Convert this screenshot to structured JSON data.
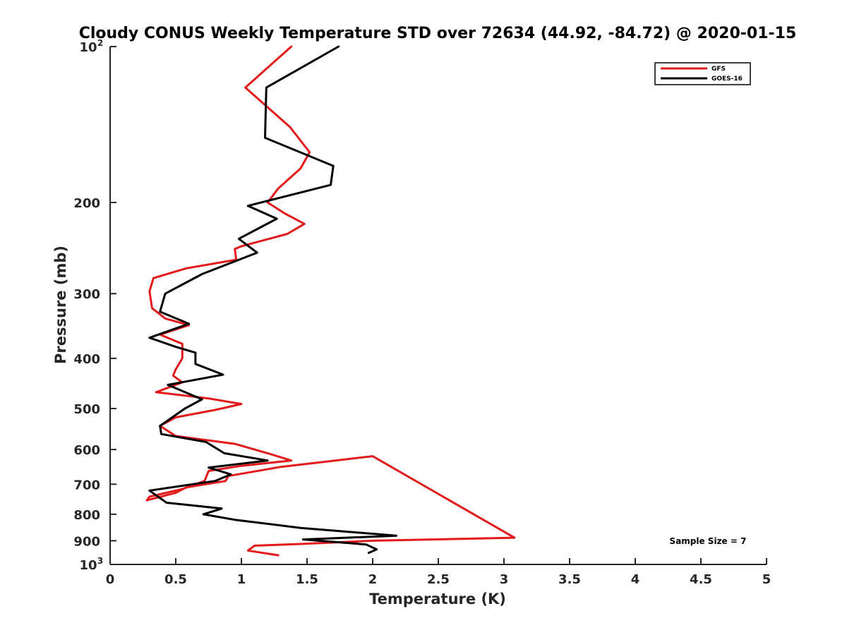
{
  "chart_data": {
    "type": "line",
    "title": "Cloudy CONUS Weekly Temperature STD over 72634 (44.92, -84.72) @ 2020-01-15",
    "xlabel": "Temperature (K)",
    "ylabel": "Pressure (mb)",
    "xlim": [
      0,
      5
    ],
    "ylim": [
      1000,
      100
    ],
    "y_scale": "log",
    "y_reversed": true,
    "grid": false,
    "legend_position": "top-right",
    "x_ticks": [
      "0",
      "0.5",
      "1",
      "1.5",
      "2",
      "2.5",
      "3",
      "3.5",
      "4",
      "4.5",
      "5"
    ],
    "y_ticks": [
      {
        "value": 100,
        "base": "10",
        "exp": "2"
      },
      {
        "value": 200,
        "label": "200"
      },
      {
        "value": 300,
        "label": "300"
      },
      {
        "value": 400,
        "label": "400"
      },
      {
        "value": 500,
        "label": "500"
      },
      {
        "value": 600,
        "label": "600"
      },
      {
        "value": 700,
        "label": "700"
      },
      {
        "value": 800,
        "label": "800"
      },
      {
        "value": 900,
        "label": "900"
      },
      {
        "value": 1000,
        "base": "10",
        "exp": "3"
      }
    ],
    "series": [
      {
        "name": "GFS",
        "color": "#e31a1c",
        "points": [
          [
            1.38,
            100
          ],
          [
            1.03,
            120
          ],
          [
            1.37,
            143
          ],
          [
            1.52,
            160
          ],
          [
            1.45,
            172
          ],
          [
            1.28,
            188
          ],
          [
            1.2,
            200
          ],
          [
            1.33,
            210
          ],
          [
            1.48,
            220
          ],
          [
            1.35,
            230
          ],
          [
            1.0,
            243
          ],
          [
            0.95,
            246
          ],
          [
            0.96,
            258
          ],
          [
            0.58,
            268
          ],
          [
            0.33,
            280
          ],
          [
            0.3,
            297
          ],
          [
            0.32,
            320
          ],
          [
            0.42,
            335
          ],
          [
            0.6,
            345
          ],
          [
            0.38,
            360
          ],
          [
            0.55,
            375
          ],
          [
            0.55,
            400
          ],
          [
            0.5,
            420
          ],
          [
            0.48,
            432
          ],
          [
            0.55,
            445
          ],
          [
            0.35,
            465
          ],
          [
            0.75,
            478
          ],
          [
            1.0,
            490
          ],
          [
            0.8,
            503
          ],
          [
            0.5,
            520
          ],
          [
            0.38,
            540
          ],
          [
            0.5,
            565
          ],
          [
            0.95,
            585
          ],
          [
            1.2,
            610
          ],
          [
            1.38,
            630
          ],
          [
            1.0,
            645
          ],
          [
            0.75,
            660
          ],
          [
            0.72,
            690
          ],
          [
            0.55,
            715
          ],
          [
            0.3,
            740
          ],
          [
            0.28,
            752
          ],
          [
            0.5,
            727
          ],
          [
            0.58,
            710
          ],
          [
            0.88,
            690
          ],
          [
            0.9,
            675
          ],
          [
            1.3,
            648
          ],
          [
            1.6,
            635
          ],
          [
            2.0,
            618
          ],
          [
            3.08,
            888
          ],
          [
            2.0,
            900
          ],
          [
            1.45,
            913
          ],
          [
            1.1,
            920
          ],
          [
            1.05,
            940
          ],
          [
            1.28,
            960
          ]
        ]
      },
      {
        "name": "GOES-16",
        "color": "#000000",
        "points": [
          [
            1.74,
            100
          ],
          [
            1.19,
            120
          ],
          [
            1.18,
            150
          ],
          [
            1.7,
            170
          ],
          [
            1.68,
            185
          ],
          [
            1.05,
            203
          ],
          [
            1.27,
            215
          ],
          [
            0.98,
            235
          ],
          [
            1.12,
            250
          ],
          [
            0.7,
            275
          ],
          [
            0.42,
            300
          ],
          [
            0.38,
            325
          ],
          [
            0.6,
            343
          ],
          [
            0.3,
            365
          ],
          [
            0.5,
            380
          ],
          [
            0.65,
            390
          ],
          [
            0.65,
            410
          ],
          [
            0.86,
            430
          ],
          [
            0.44,
            450
          ],
          [
            0.7,
            480
          ],
          [
            0.57,
            500
          ],
          [
            0.38,
            540
          ],
          [
            0.39,
            560
          ],
          [
            0.73,
            580
          ],
          [
            0.87,
            610
          ],
          [
            1.2,
            630
          ],
          [
            0.75,
            650
          ],
          [
            0.92,
            670
          ],
          [
            0.8,
            690
          ],
          [
            0.3,
            720
          ],
          [
            0.43,
            760
          ],
          [
            0.85,
            780
          ],
          [
            0.71,
            800
          ],
          [
            0.95,
            820
          ],
          [
            1.45,
            850
          ],
          [
            2.18,
            880
          ],
          [
            1.47,
            895
          ],
          [
            1.95,
            915
          ],
          [
            2.03,
            935
          ],
          [
            1.97,
            950
          ]
        ]
      }
    ],
    "annotation": "Sample Size = 7"
  }
}
